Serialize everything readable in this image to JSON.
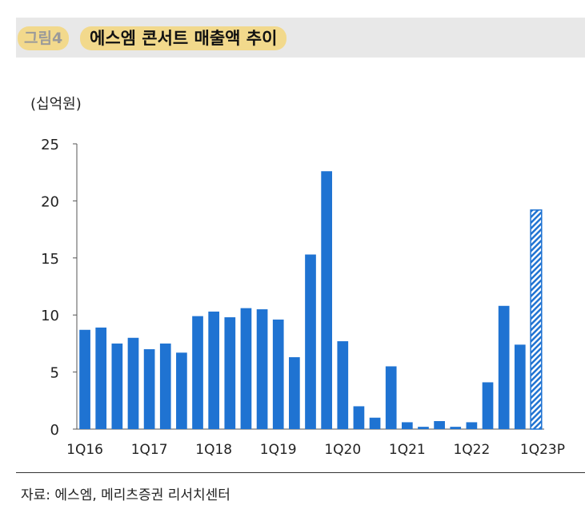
{
  "header": {
    "figure_tag": "그림4",
    "title": "에스엠 콘서트 매출액 추이"
  },
  "unit_label": "(십억원)",
  "source": "자료: 에스엠, 메리츠증권 리서치센터",
  "colors": {
    "bar": "#1f73d2",
    "header_band": "#e8e8e8",
    "title_highlight": "#f2d98c"
  },
  "chart_data": {
    "type": "bar",
    "title": "에스엠 콘서트 매출액 추이",
    "ylabel": "(십억원)",
    "xlabel": "",
    "ylim": [
      0,
      25
    ],
    "yticks": [
      0,
      5,
      10,
      15,
      20,
      25
    ],
    "grid": false,
    "categories": [
      "1Q16",
      "2Q16",
      "3Q16",
      "4Q16",
      "1Q17",
      "2Q17",
      "3Q17",
      "4Q17",
      "1Q18",
      "2Q18",
      "3Q18",
      "4Q18",
      "1Q19",
      "2Q19",
      "3Q19",
      "4Q19",
      "1Q20",
      "2Q20",
      "3Q20",
      "4Q20",
      "1Q21",
      "2Q21",
      "3Q21",
      "4Q21",
      "1Q22",
      "2Q22",
      "3Q22",
      "4Q22",
      "1Q23P"
    ],
    "values": [
      8.7,
      8.9,
      7.5,
      8.0,
      7.0,
      7.5,
      6.7,
      9.9,
      10.3,
      9.8,
      10.6,
      10.5,
      9.6,
      6.3,
      15.3,
      22.6,
      7.7,
      2.0,
      1.0,
      5.5,
      0.6,
      0.2,
      0.7,
      0.2,
      0.6,
      4.1,
      10.8,
      7.4,
      19.2
    ],
    "xtick_labels": [
      {
        "label": "1Q16",
        "index": 0
      },
      {
        "label": "1Q17",
        "index": 4
      },
      {
        "label": "1Q18",
        "index": 8
      },
      {
        "label": "1Q19",
        "index": 12
      },
      {
        "label": "1Q20",
        "index": 16
      },
      {
        "label": "1Q21",
        "index": 20
      },
      {
        "label": "1Q22",
        "index": 24
      },
      {
        "label": "1Q23P",
        "index": 28
      }
    ],
    "estimate_index": 28
  }
}
